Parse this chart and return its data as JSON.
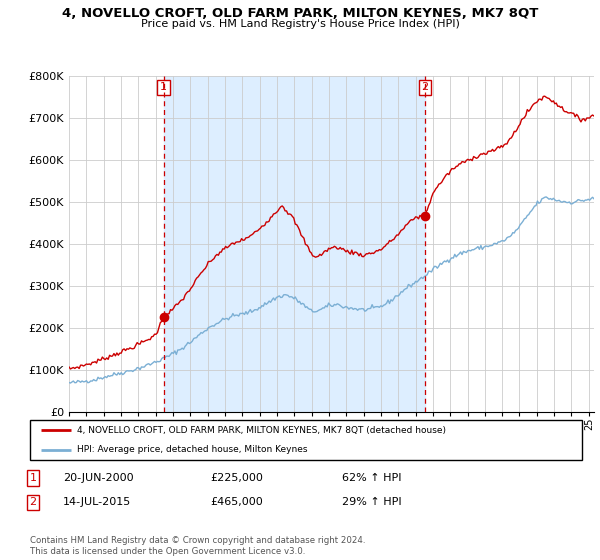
{
  "title": "4, NOVELLO CROFT, OLD FARM PARK, MILTON KEYNES, MK7 8QT",
  "subtitle": "Price paid vs. HM Land Registry's House Price Index (HPI)",
  "sale1_date": "20-JUN-2000",
  "sale1_price": 225000,
  "sale1_hpi": "62% ↑ HPI",
  "sale2_date": "14-JUL-2015",
  "sale2_price": 465000,
  "sale2_hpi": "29% ↑ HPI",
  "legend_line1": "4, NOVELLO CROFT, OLD FARM PARK, MILTON KEYNES, MK7 8QT (detached house)",
  "legend_line2": "HPI: Average price, detached house, Milton Keynes",
  "footer1": "Contains HM Land Registry data © Crown copyright and database right 2024.",
  "footer2": "This data is licensed under the Open Government Licence v3.0.",
  "hpi_color": "#7bafd4",
  "price_color": "#cc0000",
  "vline_color": "#cc0000",
  "shade_color": "#ddeeff",
  "ylim": [
    0,
    800000
  ],
  "yticks": [
    0,
    100000,
    200000,
    300000,
    400000,
    500000,
    600000,
    700000,
    800000
  ],
  "sale1_x": 2000.46,
  "sale2_x": 2015.54,
  "xmin": 1995,
  "xmax": 2025.3
}
